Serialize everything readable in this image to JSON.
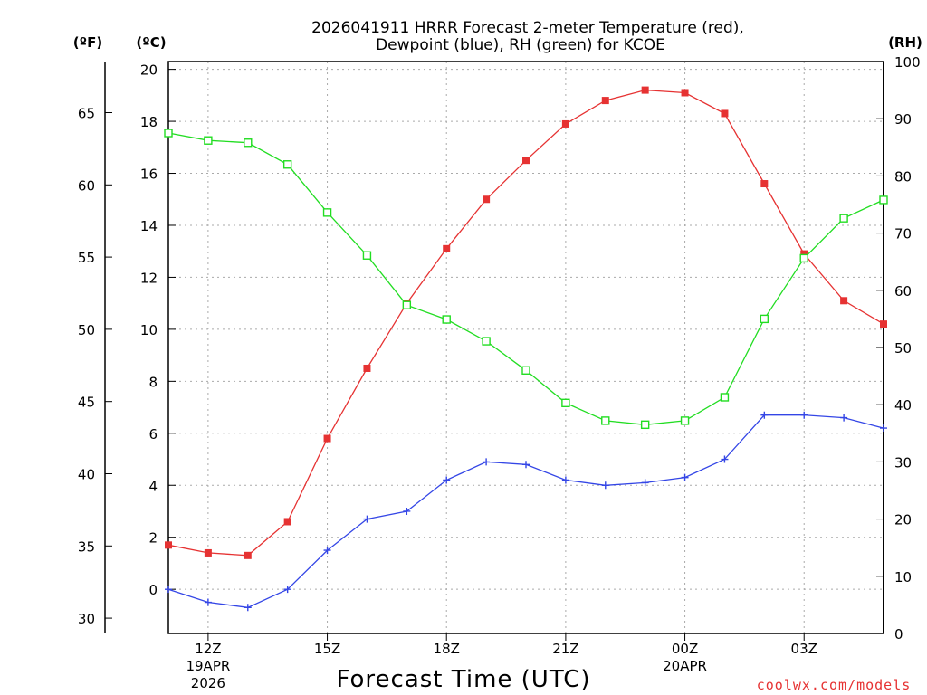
{
  "chart_data": {
    "type": "line",
    "title_line1": "2026041911 HRRR Forecast 2-meter Temperature (red),",
    "title_line2": "Dewpoint (blue), RH (green) for KCOE",
    "xlabel": "Forecast Time (UTC)",
    "credit": "coolwx.com/models",
    "left_unit_f": "(ºF)",
    "left_unit_c": "(ºC)",
    "right_unit": "(RH)",
    "hours": [
      11,
      12,
      13,
      14,
      15,
      16,
      17,
      18,
      19,
      20,
      21,
      22,
      23,
      24,
      25,
      26,
      27,
      28,
      29
    ],
    "x_ticks": [
      {
        "hour": 12,
        "label": "12Z",
        "sub1": "19APR",
        "sub2": "2026"
      },
      {
        "hour": 15,
        "label": "15Z"
      },
      {
        "hour": 18,
        "label": "18Z"
      },
      {
        "hour": 21,
        "label": "21Z"
      },
      {
        "hour": 24,
        "label": "00Z",
        "sub1": "20APR"
      },
      {
        "hour": 27,
        "label": "03Z"
      }
    ],
    "xlim": [
      11,
      29
    ],
    "ylim_c": [
      -1.7,
      20.3
    ],
    "ylim_rh": [
      0,
      100
    ],
    "c_ticks": [
      0,
      2,
      4,
      6,
      8,
      10,
      12,
      14,
      16,
      18,
      20
    ],
    "f_ticks": [
      30,
      35,
      40,
      45,
      50,
      55,
      60,
      65
    ],
    "rh_ticks": [
      0,
      10,
      20,
      30,
      40,
      50,
      60,
      70,
      80,
      90,
      100
    ],
    "series": [
      {
        "name": "Temperature",
        "color": "#e63232",
        "marker": "square-filled",
        "values": [
          1.7,
          1.4,
          1.3,
          2.6,
          5.8,
          8.5,
          11.0,
          13.1,
          15.0,
          16.5,
          17.9,
          18.8,
          19.2,
          19.1,
          18.3,
          15.6,
          12.9,
          11.1,
          10.2
        ]
      },
      {
        "name": "Dewpoint",
        "color": "#3446e6",
        "marker": "plus",
        "values": [
          0.0,
          -0.5,
          -0.7,
          0.0,
          1.5,
          2.7,
          3.0,
          4.2,
          4.9,
          4.8,
          4.2,
          4.0,
          4.1,
          4.3,
          5.0,
          6.7,
          6.7,
          6.6,
          6.2
        ]
      },
      {
        "name": "RH",
        "color": "#22dd22",
        "marker": "square-open",
        "axis": "rh",
        "values": [
          87.5,
          86.2,
          85.8,
          82.0,
          73.6,
          66.1,
          57.4,
          54.9,
          51.1,
          46.0,
          40.3,
          37.2,
          36.5,
          37.2,
          41.3,
          55.0,
          65.6,
          72.6,
          75.8
        ]
      }
    ]
  }
}
